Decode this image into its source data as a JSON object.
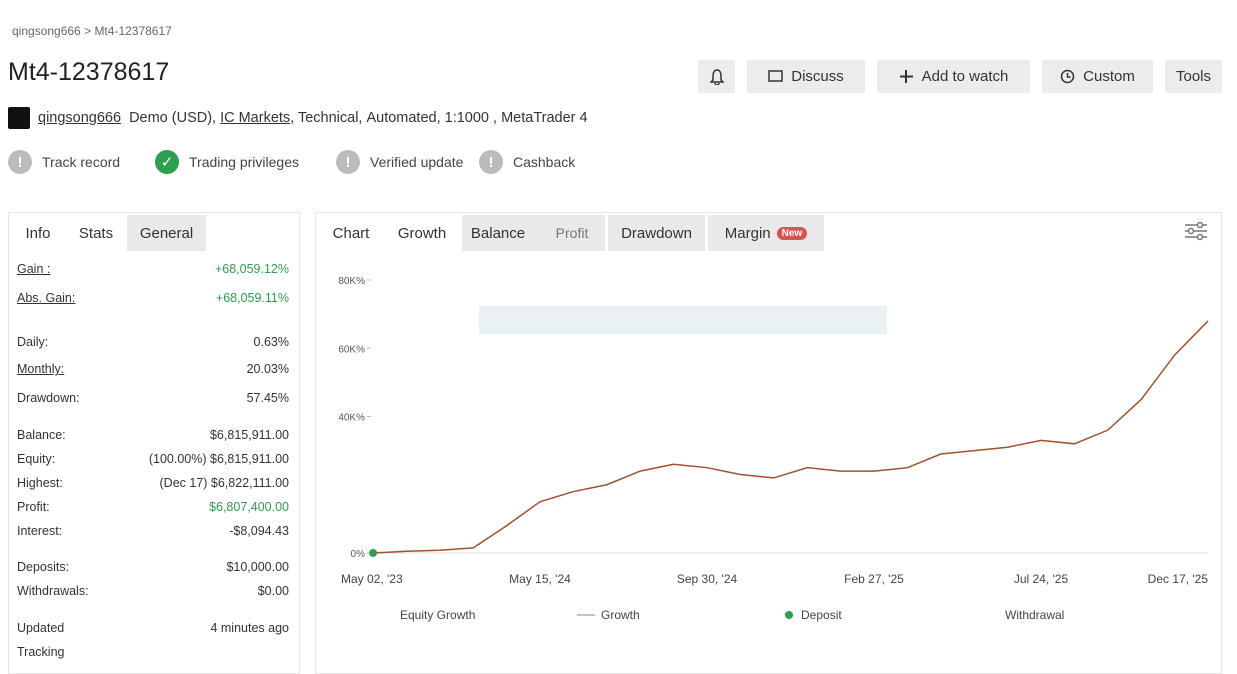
{
  "breadcrumb": {
    "user": "qingsong666",
    "separator": ">",
    "account": "Mt4-12378617"
  },
  "header": {
    "title": "Mt4-12378617",
    "buttons": [
      "Discuss",
      "Add to watch",
      "Custom",
      "Tools"
    ]
  },
  "account": {
    "owner": "qingsong666",
    "type": "Demo (USD),",
    "broker": "IC Markets",
    "style": ", Technical,",
    "mode": "Automated",
    "rest": ", 1:1000 , MetaTrader 4"
  },
  "badges": [
    {
      "label": "Track record",
      "ok": false
    },
    {
      "label": "Trading privileges",
      "ok": true
    },
    {
      "label": "Verified update",
      "ok": false
    },
    {
      "label": "Cashback",
      "ok": false
    }
  ],
  "info": {
    "tabs": [
      "Info",
      "Stats",
      "General"
    ],
    "rows": [
      {
        "label": "Gain :",
        "value": "+68,059.12%",
        "positive": true
      },
      {
        "label": "Abs. Gain:",
        "value": "+68,059.11%",
        "positive": true
      },
      {
        "label": "Daily:",
        "value": "0.63%"
      },
      {
        "label": "Monthly:",
        "value": "20.03%"
      },
      {
        "label": "Drawdown:",
        "value": "57.45%"
      },
      {
        "label": "Balance:",
        "value": "$6,815,911.00"
      },
      {
        "label": "Equity:",
        "value": "(100.00%) $6,815,911.00"
      },
      {
        "label": "Highest:",
        "value": "(Dec 17) $6,822,111.00"
      },
      {
        "label": "Profit:",
        "value": "$6,807,400.00",
        "positive": true
      },
      {
        "label": "Interest:",
        "value": "-$8,094.43"
      },
      {
        "label": "Deposits:",
        "value": "$10,000.00"
      },
      {
        "label": "Withdrawals:",
        "value": "$0.00"
      },
      {
        "label": "Updated",
        "value": "4 minutes ago"
      },
      {
        "label": "Tracking",
        "value": ""
      }
    ]
  },
  "chart_tabs": {
    "tabs": [
      "Chart",
      "Growth",
      "Balance",
      "Profit",
      "Drawdown",
      "Margin"
    ],
    "new_badge": "New"
  },
  "chart_data": {
    "type": "line",
    "categories": [
      "May 02, '23",
      null,
      null,
      null,
      null,
      "May 15, '24",
      null,
      null,
      null,
      null,
      "Sep 30, '24",
      null,
      null,
      null,
      null,
      "Feb 27, '25",
      null,
      null,
      null,
      null,
      "Jul 24, '25",
      null,
      null,
      null,
      null,
      "Dec 17, '25"
    ],
    "series": [
      {
        "name": "Growth",
        "color": "#a0522d",
        "values": [
          0,
          500,
          800,
          1500,
          8000,
          15000,
          18000,
          20000,
          24000,
          26000,
          25000,
          23000,
          22000,
          25000,
          24000,
          24000,
          25000,
          29000,
          30000,
          31000,
          33000,
          32000,
          36000,
          45000,
          58000,
          68000
        ]
      }
    ],
    "ylim": [
      0,
      80000
    ],
    "yticks": [
      {
        "value": 0,
        "label": "0%"
      },
      {
        "value": 40000,
        "label": "40K%"
      },
      {
        "value": 60000,
        "label": "60K%"
      },
      {
        "value": 80000,
        "label": "80K%"
      }
    ],
    "legend": [
      "Equity Growth",
      "Growth",
      "Deposit",
      "Withdrawal"
    ],
    "deposit_color": "#2e9e4f"
  }
}
